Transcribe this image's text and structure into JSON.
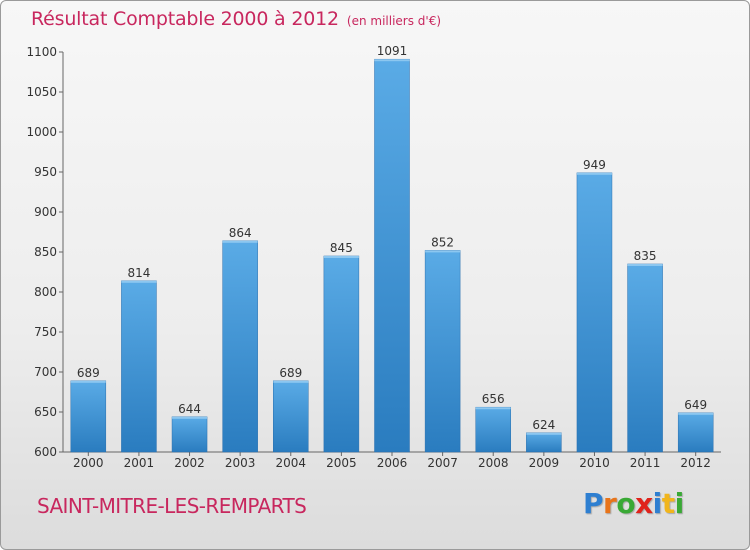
{
  "header": {
    "title": "Résultat Comptable 2000 à 2012",
    "subtitle": "(en milliers d'€)"
  },
  "city": "SAINT-MITRE-LES-REMPARTS",
  "logo": {
    "text": "Proxiti",
    "letter_colors": [
      "#2e7fd1",
      "#e8741a",
      "#39a935",
      "#e0231b",
      "#2e7fd1",
      "#f1b51c",
      "#39a935"
    ]
  },
  "colors": {
    "title": "#c8275e",
    "bar_top": "#5aabe6",
    "bar_bottom": "#2a7cbf"
  },
  "chart_data": {
    "type": "bar",
    "categories": [
      "2000",
      "2001",
      "2002",
      "2003",
      "2004",
      "2005",
      "2006",
      "2007",
      "2008",
      "2009",
      "2010",
      "2011",
      "2012"
    ],
    "values": [
      689,
      814,
      644,
      864,
      689,
      845,
      1091,
      852,
      656,
      624,
      949,
      835,
      649
    ],
    "ylim": [
      600,
      1100
    ],
    "yticks": [
      600,
      650,
      700,
      750,
      800,
      850,
      900,
      950,
      1000,
      1050,
      1100
    ],
    "grid": false,
    "data_labels": true
  }
}
